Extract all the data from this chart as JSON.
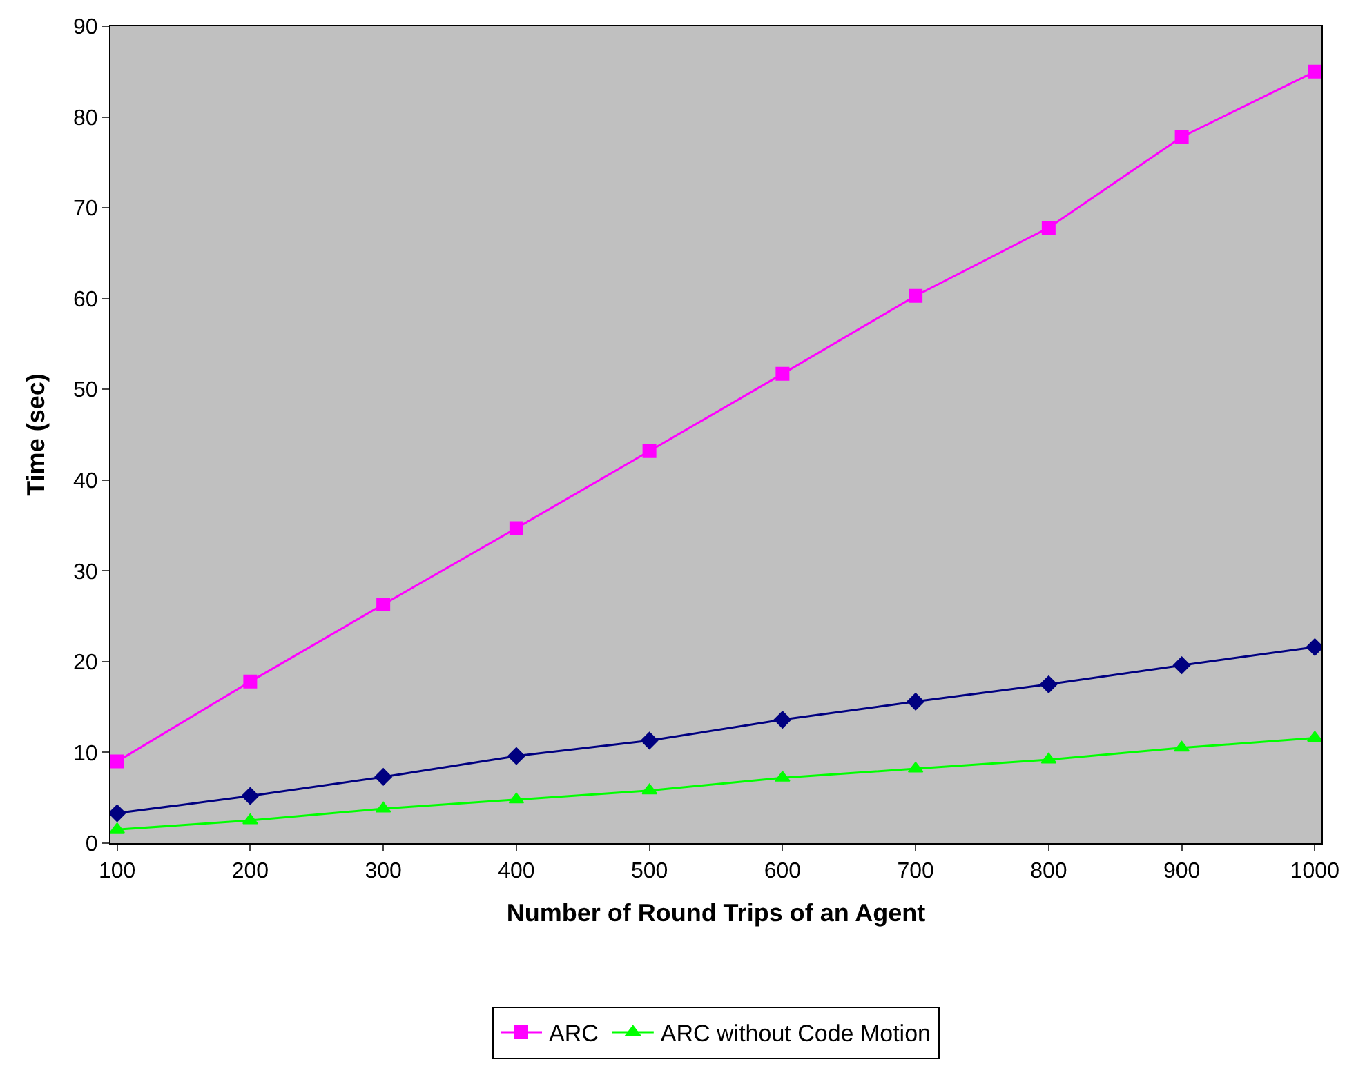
{
  "chart_data": {
    "type": "line",
    "xlabel": "Number of Round Trips of an Agent",
    "ylabel": "Time (sec)",
    "categories": [
      "100",
      "200",
      "300",
      "400",
      "500",
      "600",
      "700",
      "800",
      "900",
      "1000"
    ],
    "ylim": [
      0,
      90
    ],
    "yticks": [
      0,
      10,
      20,
      30,
      40,
      50,
      60,
      70,
      80,
      90
    ],
    "grid": false,
    "legend": "bottom",
    "series": [
      {
        "color": "#000080",
        "marker": "diamond",
        "values": [
          3.3,
          5.2,
          7.3,
          9.6,
          11.3,
          13.6,
          15.6,
          17.5,
          19.6,
          21.6
        ]
      },
      {
        "name": "ARC",
        "color": "#ff00ff",
        "marker": "square",
        "values": [
          9,
          17.8,
          26.3,
          34.7,
          43.2,
          51.7,
          60.3,
          67.8,
          77.8,
          85
        ]
      },
      {
        "name": "ARC without Code Motion",
        "color": "#00ff00",
        "marker": "triangle",
        "values": [
          1.5,
          2.5,
          3.8,
          4.8,
          5.8,
          7.2,
          8.2,
          9.2,
          10.5,
          11.6
        ]
      }
    ]
  }
}
